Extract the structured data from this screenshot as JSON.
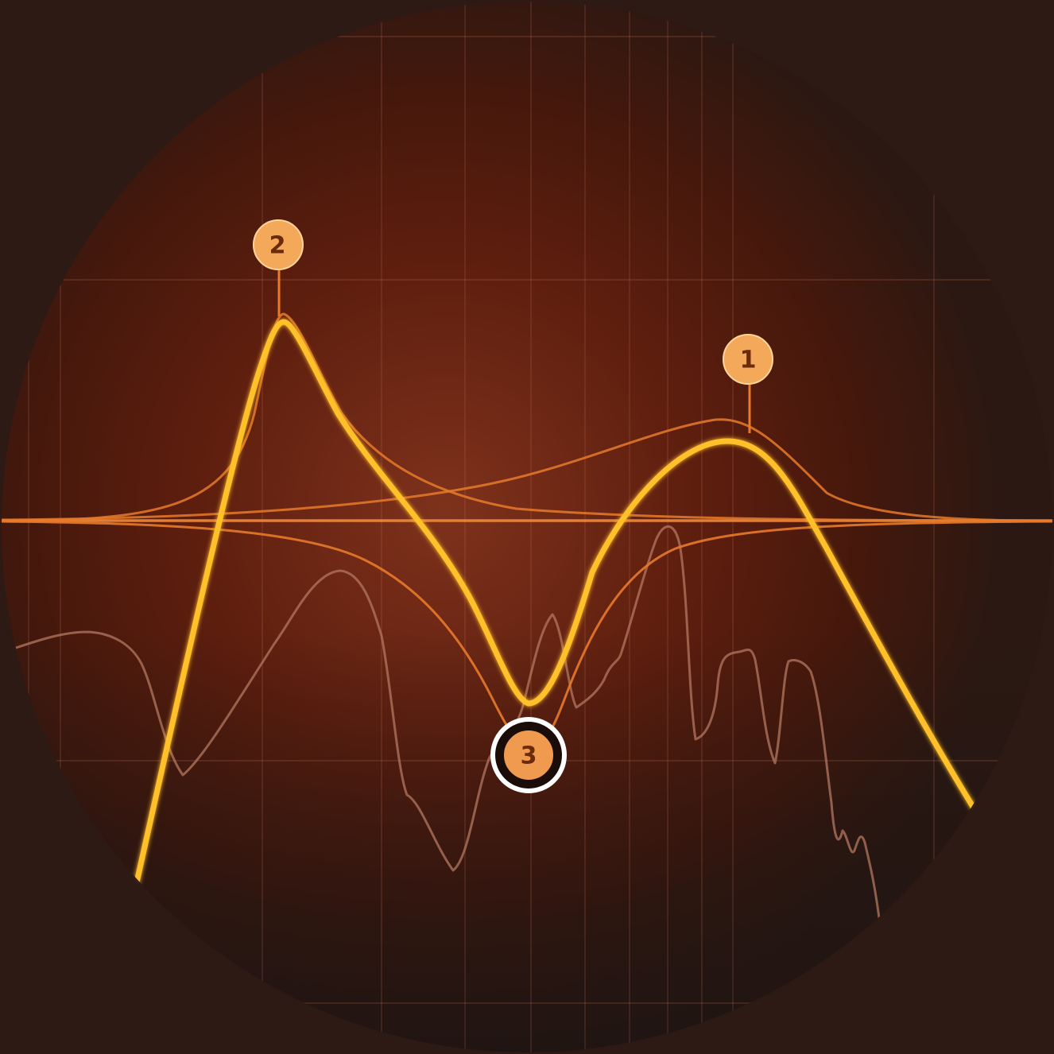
{
  "bands": [
    {
      "id": "band-1",
      "label": "1",
      "selected": false
    },
    {
      "id": "band-2",
      "label": "2",
      "selected": false
    },
    {
      "id": "band-3",
      "label": "3",
      "selected": true
    }
  ],
  "colors": {
    "background": "#2e1a14",
    "display_center": "#7a2e18",
    "display_mid": "#5a1c0c",
    "display_edge": "#2a1812",
    "grid": "#c8785a",
    "zero_line": "#f08a3a",
    "band_curve": "#e87a2a",
    "sum_curve": "#ffc02a",
    "spectrum": "#b47860",
    "handle_fill": "#f3a85a",
    "handle_text": "#6a2a0c",
    "selected_ring": "#ffffff"
  }
}
